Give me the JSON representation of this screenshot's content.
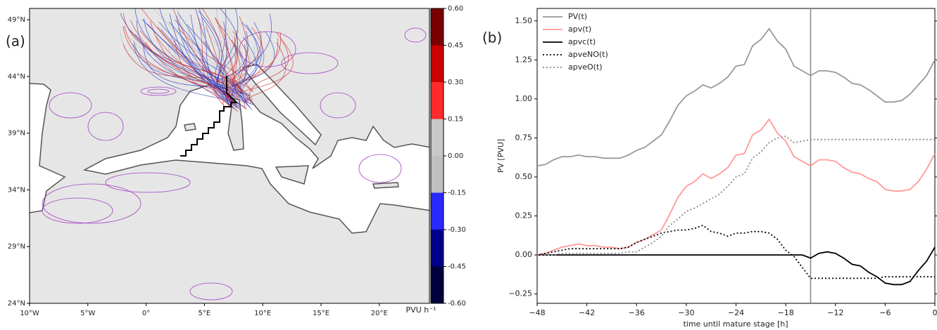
{
  "chart_data": [
    {
      "type": "map",
      "panel_label": "(a)",
      "xlim": [
        -10,
        24.3
      ],
      "ylim": [
        24,
        50
      ],
      "xticks": [
        {
          "value": -10,
          "label": "10°W"
        },
        {
          "value": -5,
          "label": "5°W"
        },
        {
          "value": 0,
          "label": "0°"
        },
        {
          "value": 5,
          "label": "5°E"
        },
        {
          "value": 10,
          "label": "10°E"
        },
        {
          "value": 15,
          "label": "15°E"
        },
        {
          "value": 20,
          "label": "20°E"
        }
      ],
      "yticks": [
        {
          "value": 24,
          "label": "24°N"
        },
        {
          "value": 29,
          "label": "29°N"
        },
        {
          "value": 34,
          "label": "34°N"
        },
        {
          "value": 39,
          "label": "39°N"
        },
        {
          "value": 44,
          "label": "44°N"
        },
        {
          "value": 49,
          "label": "49°N"
        }
      ],
      "colorbar": {
        "label": "PVU h⁻¹",
        "ticks": [
          {
            "value": -0.6,
            "label": "-0.60"
          },
          {
            "value": -0.45,
            "label": "-0.45"
          },
          {
            "value": -0.3,
            "label": "-0.30"
          },
          {
            "value": -0.15,
            "label": "-0.15"
          },
          {
            "value": 0,
            "label": "0.00"
          },
          {
            "value": 0.15,
            "label": "0.15"
          },
          {
            "value": 0.3,
            "label": "0.30"
          },
          {
            "value": 0.45,
            "label": "0.45"
          },
          {
            "value": 0.6,
            "label": "0.60"
          }
        ],
        "colors": [
          "#00003c",
          "#00008c",
          "#2828ff",
          "#c0c0c0",
          "#c8c8c8",
          "#ff2a2a",
          "#cc0000",
          "#7a0000"
        ]
      }
    },
    {
      "type": "line",
      "panel_label": "(b)",
      "xlabel": "time until mature stage [h]",
      "ylabel": "PV [PVU]",
      "xlim": [
        -48,
        0
      ],
      "ylim": [
        -0.31,
        1.58
      ],
      "xticks": [
        {
          "value": -48,
          "label": "−48"
        },
        {
          "value": -42,
          "label": "−42"
        },
        {
          "value": -36,
          "label": "−36"
        },
        {
          "value": -30,
          "label": "−30"
        },
        {
          "value": -24,
          "label": "−24"
        },
        {
          "value": -18,
          "label": "−18"
        },
        {
          "value": -12,
          "label": "−12"
        },
        {
          "value": -6,
          "label": "−6"
        },
        0
      ],
      "yticks": [
        {
          "value": -0.25,
          "label": "−0.25"
        },
        {
          "value": 0,
          "label": "0.00"
        },
        {
          "value": 0.25,
          "label": "0.25"
        },
        {
          "value": 0.5,
          "label": "0.50"
        },
        {
          "value": 0.75,
          "label": "0.75"
        },
        {
          "value": 1,
          "label": "1.00"
        },
        {
          "value": 1.25,
          "label": "1.25"
        },
        {
          "value": 1.5,
          "label": "1.50"
        }
      ],
      "vline": -15,
      "vline_color": "#888888",
      "legend": "upper left",
      "x": [
        -48,
        -47,
        -46,
        -45,
        -44,
        -43,
        -42,
        -41,
        -40,
        -39,
        -38,
        -37,
        -36,
        -35,
        -34,
        -33,
        -32,
        -31,
        -30,
        -29,
        -28,
        -27,
        -26,
        -25,
        -24,
        -23,
        -22,
        -21,
        -20,
        -19,
        -18,
        -17,
        -16,
        -15,
        -14,
        -13,
        -12,
        -11,
        -10,
        -9,
        -8,
        -7,
        -6,
        -5,
        -4,
        -3,
        -2,
        -1,
        0
      ],
      "series": [
        {
          "name": "PV(t)",
          "color": "#999999",
          "linestyle": "solid",
          "values": [
            0.57,
            0.58,
            0.61,
            0.63,
            0.63,
            0.64,
            0.63,
            0.63,
            0.62,
            0.62,
            0.62,
            0.64,
            0.67,
            0.69,
            0.73,
            0.77,
            0.86,
            0.96,
            1.02,
            1.05,
            1.09,
            1.07,
            1.1,
            1.14,
            1.21,
            1.22,
            1.34,
            1.38,
            1.45,
            1.37,
            1.32,
            1.21,
            1.18,
            1.15,
            1.18,
            1.18,
            1.17,
            1.14,
            1.1,
            1.09,
            1.06,
            1.02,
            0.98,
            0.98,
            0.99,
            1.03,
            1.09,
            1.15,
            1.25
          ]
        },
        {
          "name": "apv(t)",
          "color": "#ff9999",
          "linestyle": "solid",
          "values": [
            0.0,
            0.01,
            0.03,
            0.05,
            0.06,
            0.07,
            0.06,
            0.06,
            0.05,
            0.05,
            0.04,
            0.05,
            0.08,
            0.1,
            0.13,
            0.16,
            0.26,
            0.37,
            0.44,
            0.47,
            0.52,
            0.49,
            0.52,
            0.56,
            0.64,
            0.65,
            0.77,
            0.8,
            0.87,
            0.78,
            0.73,
            0.63,
            0.6,
            0.57,
            0.61,
            0.61,
            0.6,
            0.56,
            0.53,
            0.52,
            0.49,
            0.47,
            0.42,
            0.41,
            0.41,
            0.42,
            0.47,
            0.55,
            0.65
          ]
        },
        {
          "name": "apvc(t)",
          "color": "#000000",
          "linestyle": "solid",
          "values": [
            0,
            0,
            0,
            0,
            0,
            0,
            0,
            0,
            0,
            0,
            0,
            0,
            0,
            0,
            0,
            0,
            0,
            0,
            0,
            0,
            0,
            0,
            0,
            0,
            0,
            0,
            0,
            0,
            0,
            0,
            0,
            0,
            0,
            -0.02,
            0.01,
            0.02,
            0.01,
            -0.02,
            -0.06,
            -0.07,
            -0.11,
            -0.14,
            -0.18,
            -0.19,
            -0.19,
            -0.17,
            -0.1,
            -0.04,
            0.05
          ]
        },
        {
          "name": "apveNO(t)",
          "color": "#000000",
          "linestyle": "dotted",
          "values": [
            0.0,
            0.01,
            0.02,
            0.03,
            0.04,
            0.04,
            0.04,
            0.04,
            0.04,
            0.04,
            0.04,
            0.05,
            0.08,
            0.1,
            0.12,
            0.14,
            0.15,
            0.16,
            0.16,
            0.17,
            0.19,
            0.15,
            0.14,
            0.12,
            0.14,
            0.14,
            0.15,
            0.15,
            0.14,
            0.1,
            0.03,
            -0.01,
            -0.08,
            -0.15,
            -0.15,
            -0.15,
            -0.15,
            -0.15,
            -0.15,
            -0.15,
            -0.15,
            -0.15,
            -0.14,
            -0.14,
            -0.14,
            -0.14,
            -0.14,
            -0.14,
            -0.14
          ]
        },
        {
          "name": "apveO(t)",
          "color": "#888888",
          "linestyle": "dotted",
          "values": [
            0.0,
            0.0,
            0.0,
            0.01,
            0.01,
            0.01,
            0.01,
            0.01,
            0.01,
            0.01,
            0.01,
            0.02,
            0.02,
            0.05,
            0.08,
            0.12,
            0.19,
            0.23,
            0.28,
            0.3,
            0.33,
            0.36,
            0.39,
            0.44,
            0.5,
            0.52,
            0.62,
            0.66,
            0.72,
            0.75,
            0.76,
            0.72,
            0.73,
            0.74,
            0.74,
            0.74,
            0.74,
            0.74,
            0.74,
            0.74,
            0.74,
            0.74,
            0.74,
            0.74,
            0.74,
            0.74,
            0.74,
            0.74,
            0.74
          ]
        }
      ]
    }
  ]
}
